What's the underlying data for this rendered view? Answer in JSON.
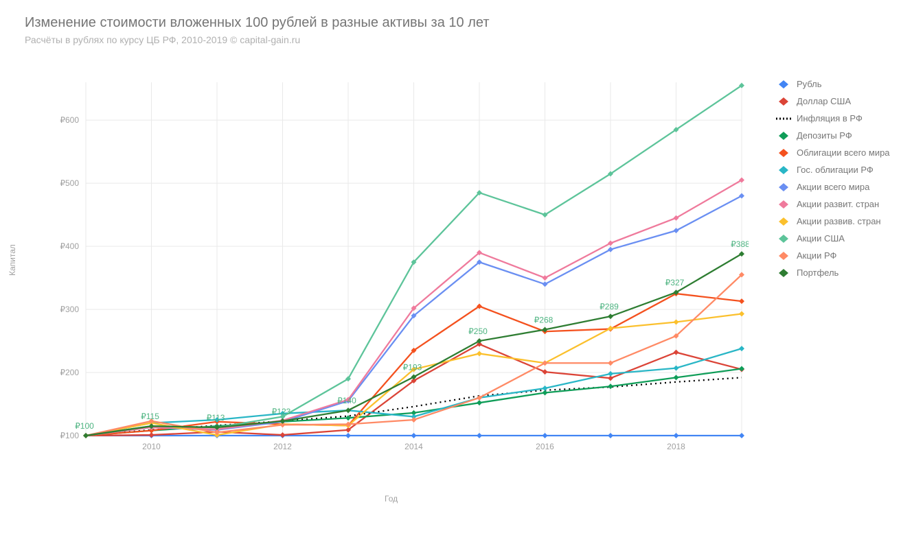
{
  "title": "Изменение стоимости вложенных 100 рублей в разные активы за 10 лет",
  "subtitle": "Расчёты в рублях по курсу ЦБ РФ, 2010-2019 © capital-gain.ru",
  "yAxisLabel": "Капитал",
  "xAxisLabel": "Год",
  "chart": {
    "type": "line",
    "background_color": "#ffffff",
    "grid_color": "#e9e9e9",
    "line_width": 2.3,
    "marker_size": 4,
    "marker_style": "diamond",
    "portfolio_label_color": "#4db380",
    "portfolio_label_fontsize": 12,
    "xlim": [
      2009,
      2019
    ],
    "years": [
      2009,
      2010,
      2011,
      2012,
      2013,
      2014,
      2015,
      2016,
      2017,
      2018,
      2019
    ],
    "xtick_years": [
      2010,
      2012,
      2014,
      2016,
      2018
    ],
    "ylim": [
      100,
      660
    ],
    "ytick_step": 100,
    "ytick_prefix": "₽",
    "title_fontsize": 20,
    "subtitle_fontsize": 14,
    "axis_label_fontsize": 12,
    "legend_fontsize": 13,
    "series": [
      {
        "key": "ruble",
        "label": "Рубль",
        "color": "#4285f4",
        "dashed": false,
        "values": [
          100,
          100,
          100,
          100,
          100,
          100,
          100,
          100,
          100,
          100,
          100
        ]
      },
      {
        "key": "usd",
        "label": "Доллар США",
        "color": "#db4437",
        "dashed": false,
        "values": [
          100,
          101,
          106,
          101,
          109,
          187,
          245,
          201,
          191,
          232,
          205
        ]
      },
      {
        "key": "inflation",
        "label": "Инфляция в РФ",
        "color": "#000000",
        "dashed": true,
        "values": [
          100,
          109,
          116,
          123,
          131,
          146,
          163,
          172,
          177,
          185,
          192
        ]
      },
      {
        "key": "deposits",
        "label": "Депозиты РФ",
        "color": "#0f9d58",
        "dashed": false,
        "values": [
          100,
          108,
          115,
          122,
          128,
          136,
          152,
          168,
          178,
          192,
          206
        ]
      },
      {
        "key": "world_bonds",
        "label": "Облигации всего мира",
        "color": "#f4511e",
        "dashed": false,
        "values": [
          100,
          108,
          122,
          118,
          116,
          235,
          305,
          265,
          269,
          325,
          313
        ]
      },
      {
        "key": "gov_bonds_rf",
        "label": "Гос. облигации РФ",
        "color": "#29b6c6",
        "dashed": false,
        "values": [
          100,
          120,
          125,
          135,
          140,
          130,
          160,
          175,
          198,
          207,
          238
        ]
      },
      {
        "key": "world_stocks",
        "label": "Акции всего мира",
        "color": "#6a8ff2",
        "dashed": false,
        "values": [
          100,
          113,
          109,
          122,
          155,
          290,
          375,
          340,
          395,
          425,
          480
        ]
      },
      {
        "key": "developed_stocks",
        "label": "Акции развит. стран",
        "color": "#ef7a9c",
        "dashed": false,
        "values": [
          100,
          113,
          110,
          124,
          157,
          302,
          390,
          350,
          405,
          445,
          505
        ]
      },
      {
        "key": "emerging_stocks",
        "label": "Акции развив. стран",
        "color": "#fbc02d",
        "dashed": false,
        "values": [
          100,
          120,
          101,
          118,
          116,
          205,
          230,
          215,
          270,
          280,
          293
        ]
      },
      {
        "key": "us_stocks",
        "label": "Акции США",
        "color": "#5dc49a",
        "dashed": false,
        "values": [
          100,
          115,
          113,
          130,
          190,
          375,
          485,
          450,
          515,
          585,
          655
        ]
      },
      {
        "key": "rf_stocks",
        "label": "Акции РФ",
        "color": "#ff8a65",
        "dashed": false,
        "values": [
          100,
          123,
          105,
          117,
          118,
          125,
          160,
          215,
          215,
          258,
          355
        ]
      },
      {
        "key": "portfolio",
        "label": "Портфель",
        "color": "#2e7d32",
        "dashed": false,
        "values": [
          100,
          115,
          113,
          123,
          140,
          193,
          250,
          268,
          289,
          327,
          388
        ],
        "show_labels": true
      }
    ]
  }
}
